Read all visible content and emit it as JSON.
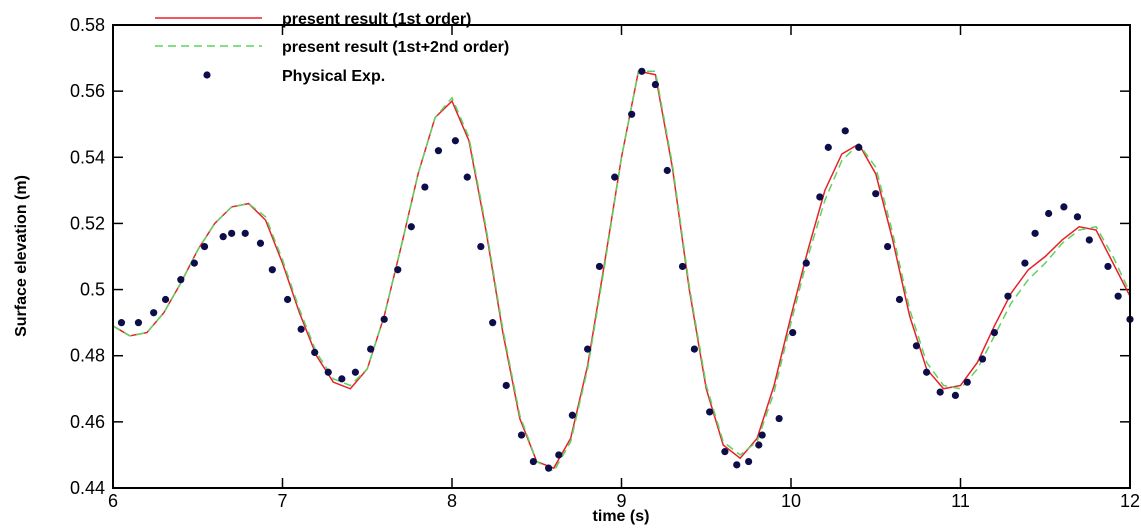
{
  "chart_data": {
    "type": "line",
    "xlabel": "time (s)",
    "ylabel": "Surface elevation (m)",
    "xlim": [
      6,
      12
    ],
    "ylim": [
      0.44,
      0.58
    ],
    "xticks": [
      6,
      7,
      8,
      9,
      10,
      11,
      12
    ],
    "yticks": [
      0.44,
      0.46,
      0.48,
      0.5,
      0.52,
      0.54,
      0.56,
      0.58
    ],
    "series": [
      {
        "name": "present result (1st order)",
        "color": "#e8202a",
        "style": "solid",
        "x": [
          6.0,
          6.1,
          6.2,
          6.3,
          6.4,
          6.5,
          6.6,
          6.7,
          6.8,
          6.9,
          7.0,
          7.1,
          7.2,
          7.3,
          7.4,
          7.5,
          7.6,
          7.7,
          7.8,
          7.9,
          8.0,
          8.1,
          8.2,
          8.3,
          8.4,
          8.5,
          8.6,
          8.7,
          8.8,
          8.9,
          9.0,
          9.1,
          9.2,
          9.3,
          9.4,
          9.5,
          9.6,
          9.7,
          9.8,
          9.9,
          10.0,
          10.1,
          10.2,
          10.3,
          10.4,
          10.5,
          10.6,
          10.7,
          10.8,
          10.9,
          11.0,
          11.1,
          11.2,
          11.3,
          11.4,
          11.5,
          11.6,
          11.7,
          11.8,
          11.9,
          12.0
        ],
        "values": [
          0.489,
          0.486,
          0.487,
          0.493,
          0.502,
          0.512,
          0.52,
          0.525,
          0.526,
          0.521,
          0.508,
          0.493,
          0.48,
          0.472,
          0.47,
          0.476,
          0.492,
          0.513,
          0.535,
          0.552,
          0.557,
          0.545,
          0.518,
          0.487,
          0.461,
          0.448,
          0.446,
          0.455,
          0.477,
          0.508,
          0.54,
          0.566,
          0.565,
          0.537,
          0.5,
          0.47,
          0.453,
          0.449,
          0.455,
          0.471,
          0.492,
          0.512,
          0.53,
          0.541,
          0.544,
          0.535,
          0.515,
          0.492,
          0.476,
          0.47,
          0.471,
          0.478,
          0.489,
          0.499,
          0.506,
          0.51,
          0.515,
          0.519,
          0.518,
          0.508,
          0.498
        ]
      },
      {
        "name": "present result (1st+2nd order)",
        "color": "#5fd35f",
        "style": "dashed",
        "x": [
          6.0,
          6.1,
          6.2,
          6.3,
          6.4,
          6.5,
          6.6,
          6.7,
          6.8,
          6.9,
          7.0,
          7.1,
          7.2,
          7.3,
          7.4,
          7.5,
          7.6,
          7.7,
          7.8,
          7.9,
          8.0,
          8.1,
          8.2,
          8.3,
          8.4,
          8.5,
          8.6,
          8.7,
          8.8,
          8.9,
          9.0,
          9.1,
          9.2,
          9.3,
          9.4,
          9.5,
          9.6,
          9.7,
          9.8,
          9.9,
          10.0,
          10.1,
          10.2,
          10.3,
          10.4,
          10.5,
          10.6,
          10.7,
          10.8,
          10.9,
          11.0,
          11.1,
          11.2,
          11.3,
          11.4,
          11.5,
          11.6,
          11.7,
          11.8,
          11.9,
          12.0
        ],
        "values": [
          0.489,
          0.486,
          0.487,
          0.493,
          0.502,
          0.512,
          0.52,
          0.525,
          0.526,
          0.522,
          0.509,
          0.494,
          0.481,
          0.473,
          0.471,
          0.476,
          0.492,
          0.513,
          0.535,
          0.552,
          0.558,
          0.546,
          0.519,
          0.488,
          0.462,
          0.448,
          0.445,
          0.454,
          0.476,
          0.507,
          0.54,
          0.566,
          0.566,
          0.538,
          0.501,
          0.471,
          0.454,
          0.45,
          0.454,
          0.469,
          0.49,
          0.51,
          0.527,
          0.539,
          0.544,
          0.537,
          0.517,
          0.494,
          0.478,
          0.471,
          0.47,
          0.476,
          0.486,
          0.496,
          0.503,
          0.508,
          0.514,
          0.518,
          0.519,
          0.51,
          0.499
        ]
      },
      {
        "name": "Physical Exp.",
        "color": "#0d0d4a",
        "style": "marker",
        "x": [
          6.05,
          6.15,
          6.24,
          6.31,
          6.4,
          6.48,
          6.54,
          6.65,
          6.7,
          6.78,
          6.87,
          6.94,
          7.03,
          7.11,
          7.19,
          7.27,
          7.35,
          7.43,
          7.52,
          7.6,
          7.68,
          7.76,
          7.84,
          7.92,
          8.02,
          8.09,
          8.17,
          8.24,
          8.32,
          8.41,
          8.48,
          8.57,
          8.63,
          8.71,
          8.8,
          8.87,
          8.96,
          9.06,
          9.12,
          9.2,
          9.27,
          9.36,
          9.43,
          9.52,
          9.61,
          9.68,
          9.75,
          9.81,
          9.83,
          9.93,
          10.01,
          10.09,
          10.17,
          10.22,
          10.32,
          10.4,
          10.5,
          10.57,
          10.64,
          10.74,
          10.8,
          10.88,
          10.97,
          11.04,
          11.13,
          11.2,
          11.28,
          11.38,
          11.44,
          11.52,
          11.61,
          11.69,
          11.76,
          11.87,
          11.93,
          12.0
        ],
        "values": [
          0.49,
          0.49,
          0.493,
          0.497,
          0.503,
          0.508,
          0.513,
          0.516,
          0.517,
          0.517,
          0.514,
          0.506,
          0.497,
          0.488,
          0.481,
          0.475,
          0.473,
          0.475,
          0.482,
          0.491,
          0.506,
          0.519,
          0.531,
          0.542,
          0.545,
          0.534,
          0.513,
          0.49,
          0.471,
          0.456,
          0.448,
          0.446,
          0.45,
          0.462,
          0.482,
          0.507,
          0.534,
          0.553,
          0.566,
          0.562,
          0.536,
          0.507,
          0.482,
          0.463,
          0.451,
          0.447,
          0.448,
          0.453,
          0.456,
          0.461,
          0.487,
          0.508,
          0.528,
          0.543,
          0.548,
          0.543,
          0.529,
          0.513,
          0.497,
          0.483,
          0.475,
          0.469,
          0.468,
          0.472,
          0.479,
          0.487,
          0.498,
          0.508,
          0.517,
          0.523,
          0.525,
          0.522,
          0.515,
          0.507,
          0.498,
          0.491
        ]
      }
    ]
  }
}
